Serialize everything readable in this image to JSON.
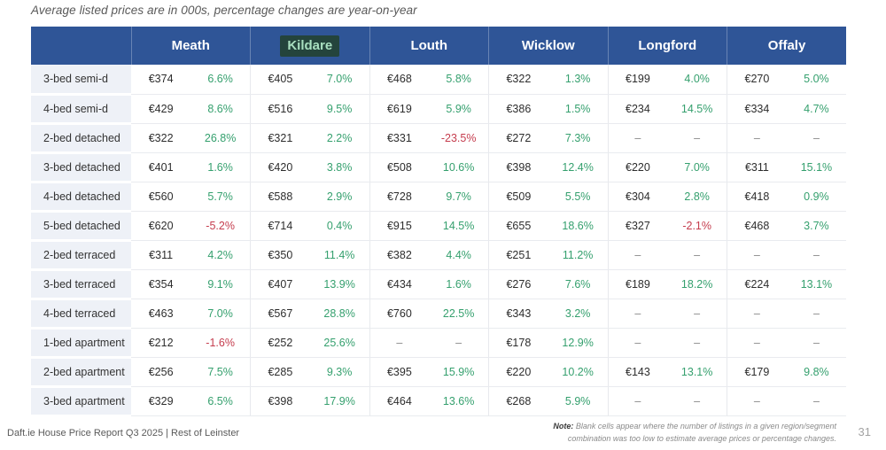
{
  "title": "Average listed prices are in 000s, percentage changes are year-on-year",
  "colors": {
    "header_bg": "#2f5597",
    "header_text": "#ffffff",
    "highlight_bg": "#24443c",
    "highlight_text": "#a9dfc0",
    "label_bg": "#eef1f7",
    "positive": "#35a06e",
    "negative": "#c53d4e",
    "price_text": "#2d2d2d",
    "dash": "#888888"
  },
  "table": {
    "corner": "",
    "counties": [
      {
        "name": "Meath",
        "highlighted": false
      },
      {
        "name": "Kildare",
        "highlighted": true
      },
      {
        "name": "Louth",
        "highlighted": false
      },
      {
        "name": "Wicklow",
        "highlighted": false
      },
      {
        "name": "Longford",
        "highlighted": false
      },
      {
        "name": "Offaly",
        "highlighted": false
      }
    ],
    "rows": [
      {
        "label": "3-bed semi-d",
        "cells": [
          [
            "€374",
            "6.6%"
          ],
          [
            "€405",
            "7.0%"
          ],
          [
            "€468",
            "5.8%"
          ],
          [
            "€322",
            "1.3%"
          ],
          [
            "€199",
            "4.0%"
          ],
          [
            "€270",
            "5.0%"
          ]
        ]
      },
      {
        "label": "4-bed semi-d",
        "cells": [
          [
            "€429",
            "8.6%"
          ],
          [
            "€516",
            "9.5%"
          ],
          [
            "€619",
            "5.9%"
          ],
          [
            "€386",
            "1.5%"
          ],
          [
            "€234",
            "14.5%"
          ],
          [
            "€334",
            "4.7%"
          ]
        ]
      },
      {
        "label": "2-bed detached",
        "cells": [
          [
            "€322",
            "26.8%"
          ],
          [
            "€321",
            "2.2%"
          ],
          [
            "€331",
            "-23.5%"
          ],
          [
            "€272",
            "7.3%"
          ],
          [
            "–",
            "–"
          ],
          [
            "–",
            "–"
          ]
        ]
      },
      {
        "label": "3-bed detached",
        "cells": [
          [
            "€401",
            "1.6%"
          ],
          [
            "€420",
            "3.8%"
          ],
          [
            "€508",
            "10.6%"
          ],
          [
            "€398",
            "12.4%"
          ],
          [
            "€220",
            "7.0%"
          ],
          [
            "€311",
            "15.1%"
          ]
        ]
      },
      {
        "label": "4-bed detached",
        "cells": [
          [
            "€560",
            "5.7%"
          ],
          [
            "€588",
            "2.9%"
          ],
          [
            "€728",
            "9.7%"
          ],
          [
            "€509",
            "5.5%"
          ],
          [
            "€304",
            "2.8%"
          ],
          [
            "€418",
            "0.9%"
          ]
        ]
      },
      {
        "label": "5-bed detached",
        "cells": [
          [
            "€620",
            "-5.2%"
          ],
          [
            "€714",
            "0.4%"
          ],
          [
            "€915",
            "14.5%"
          ],
          [
            "€655",
            "18.6%"
          ],
          [
            "€327",
            "-2.1%"
          ],
          [
            "€468",
            "3.7%"
          ]
        ]
      },
      {
        "label": "2-bed terraced",
        "cells": [
          [
            "€311",
            "4.2%"
          ],
          [
            "€350",
            "11.4%"
          ],
          [
            "€382",
            "4.4%"
          ],
          [
            "€251",
            "11.2%"
          ],
          [
            "–",
            "–"
          ],
          [
            "–",
            "–"
          ]
        ]
      },
      {
        "label": "3-bed terraced",
        "cells": [
          [
            "€354",
            "9.1%"
          ],
          [
            "€407",
            "13.9%"
          ],
          [
            "€434",
            "1.6%"
          ],
          [
            "€276",
            "7.6%"
          ],
          [
            "€189",
            "18.2%"
          ],
          [
            "€224",
            "13.1%"
          ]
        ]
      },
      {
        "label": "4-bed terraced",
        "cells": [
          [
            "€463",
            "7.0%"
          ],
          [
            "€567",
            "28.8%"
          ],
          [
            "€760",
            "22.5%"
          ],
          [
            "€343",
            "3.2%"
          ],
          [
            "–",
            "–"
          ],
          [
            "–",
            "–"
          ]
        ]
      },
      {
        "label": "1-bed apartment",
        "cells": [
          [
            "€212",
            "-1.6%"
          ],
          [
            "€252",
            "25.6%"
          ],
          [
            "–",
            "–"
          ],
          [
            "€178",
            "12.9%"
          ],
          [
            "–",
            "–"
          ],
          [
            "–",
            "–"
          ]
        ]
      },
      {
        "label": "2-bed apartment",
        "cells": [
          [
            "€256",
            "7.5%"
          ],
          [
            "€285",
            "9.3%"
          ],
          [
            "€395",
            "15.9%"
          ],
          [
            "€220",
            "10.2%"
          ],
          [
            "€143",
            "13.1%"
          ],
          [
            "€179",
            "9.8%"
          ]
        ]
      },
      {
        "label": "3-bed apartment",
        "cells": [
          [
            "€329",
            "6.5%"
          ],
          [
            "€398",
            "17.9%"
          ],
          [
            "€464",
            "13.6%"
          ],
          [
            "€268",
            "5.9%"
          ],
          [
            "–",
            "–"
          ],
          [
            "–",
            "–"
          ]
        ]
      }
    ]
  },
  "footer": {
    "report": "Daft.ie House Price Report Q3 2025 | Rest of Leinster",
    "note_label": "Note:",
    "note_text": " Blank cells appear where the number of listings in a given region/segment combination was too low to estimate average prices or percentage changes.",
    "page": "31"
  }
}
